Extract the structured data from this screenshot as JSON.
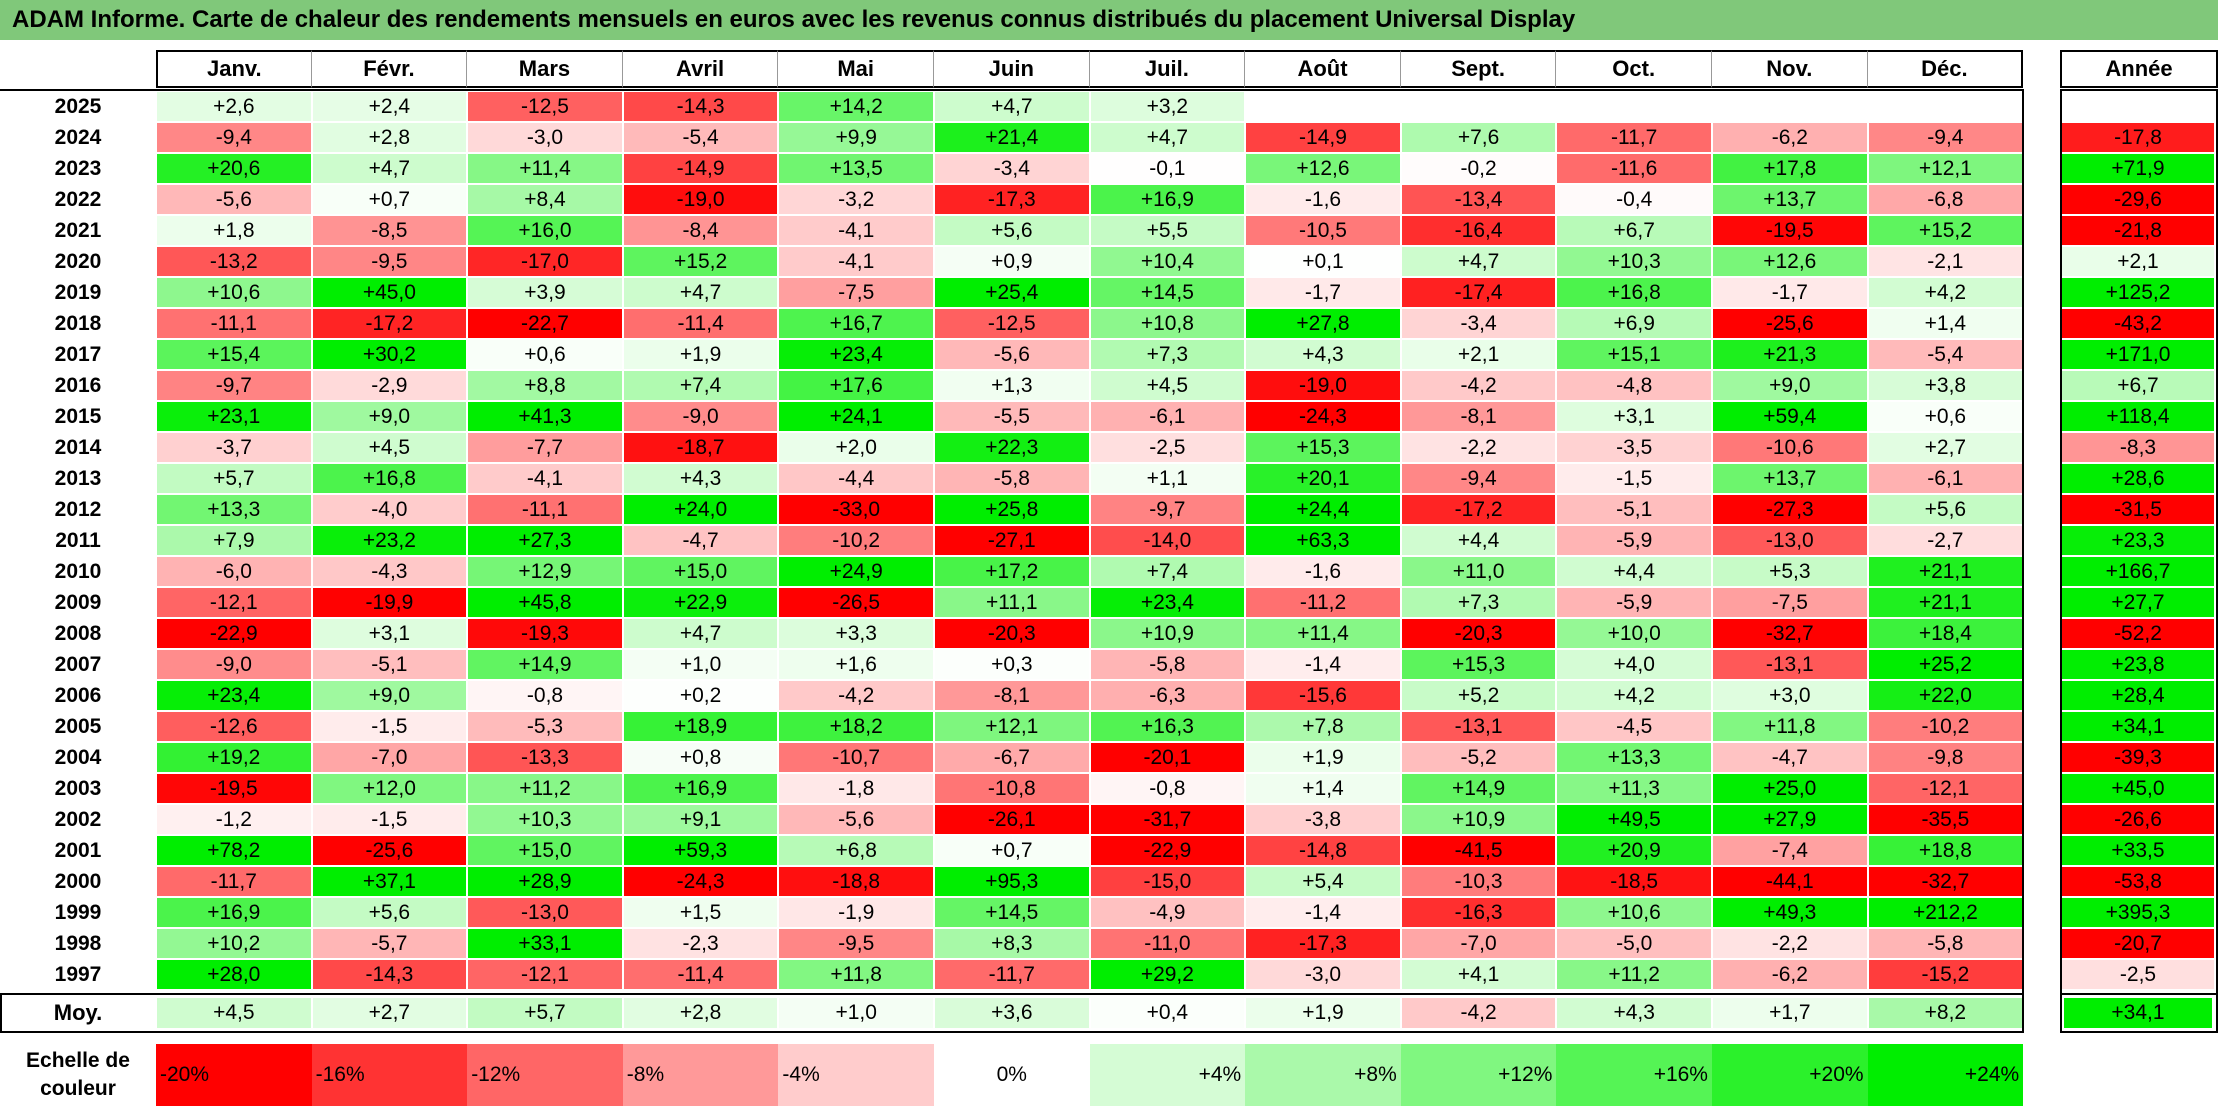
{
  "title": "ADAM Informe. Carte de chaleur des rendements mensuels en euros avec les revenus connus distribués du placement Universal Display",
  "colors": {
    "title_bg": "#80c87a",
    "neg_max": "#ff0000",
    "neutral": "#ffffff",
    "pos_max": "#00ee00"
  },
  "chart_data": {
    "type": "heatmap",
    "columns": [
      "Janv.",
      "Févr.",
      "Mars",
      "Avril",
      "Mai",
      "Juin",
      "Juil.",
      "Août",
      "Sept.",
      "Oct.",
      "Nov.",
      "Déc."
    ],
    "year_column_label": "Année",
    "color_range": [
      -20,
      24
    ],
    "rows": [
      {
        "year": "2025",
        "values": [
          "+2,6",
          "+2,4",
          "-12,5",
          "-14,3",
          "+14,2",
          "+4,7",
          "+3,2",
          "",
          "",
          "",
          "",
          ""
        ],
        "annual": ""
      },
      {
        "year": "2024",
        "values": [
          "-9,4",
          "+2,8",
          "-3,0",
          "-5,4",
          "+9,9",
          "+21,4",
          "+4,7",
          "-14,9",
          "+7,6",
          "-11,7",
          "-6,2",
          "-9,4"
        ],
        "annual": "-17,8"
      },
      {
        "year": "2023",
        "values": [
          "+20,6",
          "+4,7",
          "+11,4",
          "-14,9",
          "+13,5",
          "-3,4",
          "-0,1",
          "+12,6",
          "-0,2",
          "-11,6",
          "+17,8",
          "+12,1"
        ],
        "annual": "+71,9"
      },
      {
        "year": "2022",
        "values": [
          "-5,6",
          "+0,7",
          "+8,4",
          "-19,0",
          "-3,2",
          "-17,3",
          "+16,9",
          "-1,6",
          "-13,4",
          "-0,4",
          "+13,7",
          "-6,8"
        ],
        "annual": "-29,6"
      },
      {
        "year": "2021",
        "values": [
          "+1,8",
          "-8,5",
          "+16,0",
          "-8,4",
          "-4,1",
          "+5,6",
          "+5,5",
          "-10,5",
          "-16,4",
          "+6,7",
          "-19,5",
          "+15,2"
        ],
        "annual": "-21,8"
      },
      {
        "year": "2020",
        "values": [
          "-13,2",
          "-9,5",
          "-17,0",
          "+15,2",
          "-4,1",
          "+0,9",
          "+10,4",
          "+0,1",
          "+4,7",
          "+10,3",
          "+12,6",
          "-2,1"
        ],
        "annual": "+2,1"
      },
      {
        "year": "2019",
        "values": [
          "+10,6",
          "+45,0",
          "+3,9",
          "+4,7",
          "-7,5",
          "+25,4",
          "+14,5",
          "-1,7",
          "-17,4",
          "+16,8",
          "-1,7",
          "+4,2"
        ],
        "annual": "+125,2"
      },
      {
        "year": "2018",
        "values": [
          "-11,1",
          "-17,2",
          "-22,7",
          "-11,4",
          "+16,7",
          "-12,5",
          "+10,8",
          "+27,8",
          "-3,4",
          "+6,9",
          "-25,6",
          "+1,4"
        ],
        "annual": "-43,2"
      },
      {
        "year": "2017",
        "values": [
          "+15,4",
          "+30,2",
          "+0,6",
          "+1,9",
          "+23,4",
          "-5,6",
          "+7,3",
          "+4,3",
          "+2,1",
          "+15,1",
          "+21,3",
          "-5,4"
        ],
        "annual": "+171,0"
      },
      {
        "year": "2016",
        "values": [
          "-9,7",
          "-2,9",
          "+8,8",
          "+7,4",
          "+17,6",
          "+1,3",
          "+4,5",
          "-19,0",
          "-4,2",
          "-4,8",
          "+9,0",
          "+3,8"
        ],
        "annual": "+6,7"
      },
      {
        "year": "2015",
        "values": [
          "+23,1",
          "+9,0",
          "+41,3",
          "-9,0",
          "+24,1",
          "-5,5",
          "-6,1",
          "-24,3",
          "-8,1",
          "+3,1",
          "+59,4",
          "+0,6"
        ],
        "annual": "+118,4"
      },
      {
        "year": "2014",
        "values": [
          "-3,7",
          "+4,5",
          "-7,7",
          "-18,7",
          "+2,0",
          "+22,3",
          "-2,5",
          "+15,3",
          "-2,2",
          "-3,5",
          "-10,6",
          "+2,7"
        ],
        "annual": "-8,3"
      },
      {
        "year": "2013",
        "values": [
          "+5,7",
          "+16,8",
          "-4,1",
          "+4,3",
          "-4,4",
          "-5,8",
          "+1,1",
          "+20,1",
          "-9,4",
          "-1,5",
          "+13,7",
          "-6,1"
        ],
        "annual": "+28,6"
      },
      {
        "year": "2012",
        "values": [
          "+13,3",
          "-4,0",
          "-11,1",
          "+24,0",
          "-33,0",
          "+25,8",
          "-9,7",
          "+24,4",
          "-17,2",
          "-5,1",
          "-27,3",
          "+5,6"
        ],
        "annual": "-31,5"
      },
      {
        "year": "2011",
        "values": [
          "+7,9",
          "+23,2",
          "+27,3",
          "-4,7",
          "-10,2",
          "-27,1",
          "-14,0",
          "+63,3",
          "+4,4",
          "-5,9",
          "-13,0",
          "-2,7"
        ],
        "annual": "+23,3"
      },
      {
        "year": "2010",
        "values": [
          "-6,0",
          "-4,3",
          "+12,9",
          "+15,0",
          "+24,9",
          "+17,2",
          "+7,4",
          "-1,6",
          "+11,0",
          "+4,4",
          "+5,3",
          "+21,1"
        ],
        "annual": "+166,7"
      },
      {
        "year": "2009",
        "values": [
          "-12,1",
          "-19,9",
          "+45,8",
          "+22,9",
          "-26,5",
          "+11,1",
          "+23,4",
          "-11,2",
          "+7,3",
          "-5,9",
          "-7,5",
          "+21,1"
        ],
        "annual": "+27,7"
      },
      {
        "year": "2008",
        "values": [
          "-22,9",
          "+3,1",
          "-19,3",
          "+4,7",
          "+3,3",
          "-20,3",
          "+10,9",
          "+11,4",
          "-20,3",
          "+10,0",
          "-32,7",
          "+18,4"
        ],
        "annual": "-52,2"
      },
      {
        "year": "2007",
        "values": [
          "-9,0",
          "-5,1",
          "+14,9",
          "+1,0",
          "+1,6",
          "+0,3",
          "-5,8",
          "-1,4",
          "+15,3",
          "+4,0",
          "-13,1",
          "+25,2"
        ],
        "annual": "+23,8"
      },
      {
        "year": "2006",
        "values": [
          "+23,4",
          "+9,0",
          "-0,8",
          "+0,2",
          "-4,2",
          "-8,1",
          "-6,3",
          "-15,6",
          "+5,2",
          "+4,2",
          "+3,0",
          "+22,0"
        ],
        "annual": "+28,4"
      },
      {
        "year": "2005",
        "values": [
          "-12,6",
          "-1,5",
          "-5,3",
          "+18,9",
          "+18,2",
          "+12,1",
          "+16,3",
          "+7,8",
          "-13,1",
          "-4,5",
          "+11,8",
          "-10,2"
        ],
        "annual": "+34,1"
      },
      {
        "year": "2004",
        "values": [
          "+19,2",
          "-7,0",
          "-13,3",
          "+0,8",
          "-10,7",
          "-6,7",
          "-20,1",
          "+1,9",
          "-5,2",
          "+13,3",
          "-4,7",
          "-9,8"
        ],
        "annual": "-39,3"
      },
      {
        "year": "2003",
        "values": [
          "-19,5",
          "+12,0",
          "+11,2",
          "+16,9",
          "-1,8",
          "-10,8",
          "-0,8",
          "+1,4",
          "+14,9",
          "+11,3",
          "+25,0",
          "-12,1"
        ],
        "annual": "+45,0"
      },
      {
        "year": "2002",
        "values": [
          "-1,2",
          "-1,5",
          "+10,3",
          "+9,1",
          "-5,6",
          "-26,1",
          "-31,7",
          "-3,8",
          "+10,9",
          "+49,5",
          "+27,9",
          "-35,5"
        ],
        "annual": "-26,6"
      },
      {
        "year": "2001",
        "values": [
          "+78,2",
          "-25,6",
          "+15,0",
          "+59,3",
          "+6,8",
          "+0,7",
          "-22,9",
          "-14,8",
          "-41,5",
          "+20,9",
          "-7,4",
          "+18,8"
        ],
        "annual": "+33,5"
      },
      {
        "year": "2000",
        "values": [
          "-11,7",
          "+37,1",
          "+28,9",
          "-24,3",
          "-18,8",
          "+95,3",
          "-15,0",
          "+5,4",
          "-10,3",
          "-18,5",
          "-44,1",
          "-32,7"
        ],
        "annual": "-53,8"
      },
      {
        "year": "1999",
        "values": [
          "+16,9",
          "+5,6",
          "-13,0",
          "+1,5",
          "-1,9",
          "+14,5",
          "-4,9",
          "-1,4",
          "-16,3",
          "+10,6",
          "+49,3",
          "+212,2"
        ],
        "annual": "+395,3"
      },
      {
        "year": "1998",
        "values": [
          "+10,2",
          "-5,7",
          "+33,1",
          "-2,3",
          "-9,5",
          "+8,3",
          "-11,0",
          "-17,3",
          "-7,0",
          "-5,0",
          "-2,2",
          "-5,8"
        ],
        "annual": "-20,7"
      },
      {
        "year": "1997",
        "values": [
          "+28,0",
          "-14,3",
          "-12,1",
          "-11,4",
          "+11,8",
          "-11,7",
          "+29,2",
          "-3,0",
          "+4,1",
          "+11,2",
          "-6,2",
          "-15,2"
        ],
        "annual": "-2,5"
      }
    ],
    "average": {
      "label": "Moy.",
      "values": [
        "+4,5",
        "+2,7",
        "+5,7",
        "+2,8",
        "+1,0",
        "+3,6",
        "+0,4",
        "+1,9",
        "-4,2",
        "+4,3",
        "+1,7",
        "+8,2"
      ],
      "annual": "+34,1"
    },
    "scale": {
      "label": "Echelle de couleur",
      "steps": [
        {
          "label": "-20%",
          "value": -20
        },
        {
          "label": "-16%",
          "value": -16
        },
        {
          "label": "-12%",
          "value": -12
        },
        {
          "label": "-8%",
          "value": -8
        },
        {
          "label": "-4%",
          "value": -4
        },
        {
          "label": "0%",
          "value": 0
        },
        {
          "label": "+4%",
          "value": 4
        },
        {
          "label": "+8%",
          "value": 8
        },
        {
          "label": "+12%",
          "value": 12
        },
        {
          "label": "+16%",
          "value": 16
        },
        {
          "label": "+20%",
          "value": 20
        },
        {
          "label": "+24%",
          "value": 24
        }
      ]
    }
  }
}
